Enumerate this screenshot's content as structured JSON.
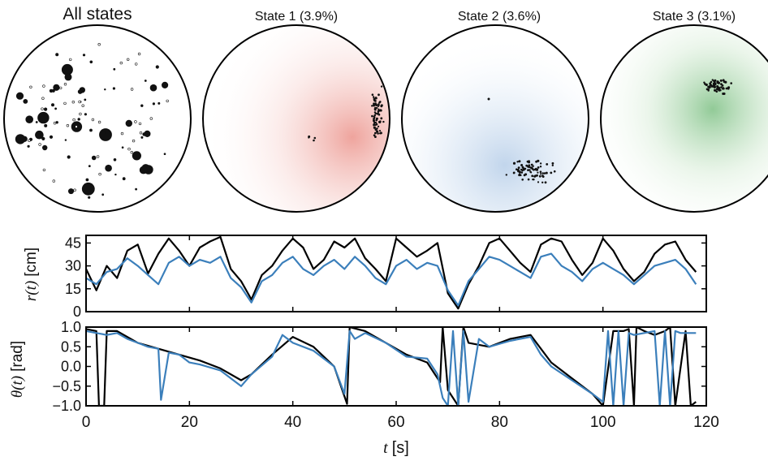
{
  "panels": [
    {
      "title": "All states",
      "color": "#000000"
    },
    {
      "title": "State 1 (3.9%)",
      "color": "#d9473c"
    },
    {
      "title": "State 2 (3.6%)",
      "color": "#3f7fbf"
    },
    {
      "title": "State 3 (3.1%)",
      "color": "#2e8b3a"
    }
  ],
  "chart_data": [
    {
      "type": "scatter",
      "title": "All states",
      "note": "points inside circular arena; filled dots sized by occupancy"
    },
    {
      "type": "scatter",
      "title": "State 1 (3.9%)",
      "cluster_location": "right edge of arena"
    },
    {
      "type": "scatter",
      "title": "State 2 (3.6%)",
      "cluster_location": "bottom-right of arena"
    },
    {
      "type": "scatter",
      "title": "State 3 (3.1%)",
      "cluster_location": "upper center-right of arena"
    },
    {
      "type": "line",
      "ylabel_math": "r(t)",
      "ylabel_unit": "[cm]",
      "xlim": [
        0,
        120
      ],
      "ylim": [
        0,
        50
      ],
      "yticks": [
        "0",
        "15",
        "30",
        "45"
      ],
      "x": [
        0,
        2,
        4,
        6,
        8,
        10,
        12,
        14,
        16,
        18,
        20,
        22,
        24,
        26,
        28,
        30,
        32,
        34,
        36,
        38,
        40,
        42,
        44,
        46,
        48,
        50,
        52,
        54,
        56,
        58,
        60,
        62,
        64,
        66,
        68,
        70,
        72,
        74,
        76,
        78,
        80,
        82,
        84,
        86,
        88,
        90,
        92,
        94,
        96,
        98,
        100,
        102,
        104,
        106,
        108,
        110,
        112,
        114,
        116,
        118
      ],
      "series": [
        {
          "color": "#000000",
          "values": [
            28,
            14,
            30,
            22,
            40,
            44,
            25,
            38,
            48,
            40,
            30,
            42,
            46,
            49,
            28,
            20,
            8,
            24,
            30,
            40,
            48,
            42,
            28,
            34,
            46,
            42,
            48,
            35,
            28,
            20,
            48,
            42,
            36,
            40,
            45,
            12,
            2,
            18,
            30,
            45,
            48,
            40,
            32,
            26,
            44,
            48,
            46,
            34,
            24,
            32,
            48,
            40,
            28,
            20,
            26,
            38,
            44,
            46,
            34,
            26
          ]
        },
        {
          "color": "#3b7fbb",
          "values": [
            22,
            18,
            26,
            28,
            35,
            30,
            24,
            18,
            32,
            36,
            30,
            34,
            32,
            36,
            22,
            16,
            6,
            20,
            24,
            32,
            36,
            28,
            24,
            30,
            34,
            28,
            36,
            30,
            22,
            18,
            30,
            34,
            28,
            32,
            30,
            14,
            4,
            20,
            28,
            36,
            34,
            30,
            26,
            22,
            36,
            38,
            30,
            26,
            20,
            28,
            32,
            28,
            24,
            18,
            24,
            30,
            32,
            34,
            28,
            18
          ]
        }
      ]
    },
    {
      "type": "line",
      "ylabel_math": "θ(t)",
      "ylabel_unit": "[rad]",
      "xlabel_math": "t",
      "xlabel_unit": "[s]",
      "xlim": [
        0,
        120
      ],
      "ylim": [
        -1.0,
        1.0
      ],
      "yticks": [
        "−1.0",
        "−0.5",
        "0.0",
        "0.5",
        "1.0"
      ],
      "xticks": [
        "0",
        "20",
        "40",
        "60",
        "80",
        "100",
        "120"
      ],
      "series": [
        {
          "color": "#000000",
          "x": [
            0,
            2,
            2.5,
            3.5,
            4,
            6,
            10,
            14,
            18,
            22,
            26,
            30,
            32,
            36,
            40,
            44,
            48,
            50.5,
            51,
            54,
            58,
            62,
            66,
            68.5,
            69,
            70,
            72,
            73,
            74,
            78,
            82,
            86,
            90,
            94,
            98,
            100,
            102,
            104,
            105,
            106,
            106.5,
            108,
            110,
            112,
            113,
            114,
            116,
            117,
            118
          ],
          "values": [
            0.95,
            0.9,
            -1,
            -1,
            0.9,
            0.9,
            0.6,
            0.45,
            0.3,
            0.15,
            -0.05,
            -0.35,
            -0.2,
            0.3,
            0.75,
            0.5,
            0.0,
            -0.95,
            1.0,
            0.9,
            0.6,
            0.3,
            0.1,
            -0.4,
            1.0,
            -0.6,
            -1,
            1,
            0.6,
            0.5,
            0.7,
            0.8,
            0.1,
            -0.3,
            -0.7,
            -1.0,
            0.9,
            0.9,
            0.95,
            -1,
            1,
            0.9,
            0.8,
            0.9,
            1,
            -1,
            0.9,
            -1,
            -0.9
          ]
        },
        {
          "color": "#3b7fbb",
          "x": [
            0,
            2,
            4,
            6,
            8,
            10,
            12,
            14,
            14.5,
            16,
            18,
            20,
            22,
            26,
            28,
            30,
            32,
            36,
            38,
            40,
            44,
            48,
            50,
            51,
            52,
            54,
            58,
            62,
            66,
            68,
            69,
            70,
            71,
            72,
            73,
            74,
            76,
            78,
            82,
            86,
            88,
            90,
            94,
            98,
            100,
            101,
            102,
            103,
            104,
            105,
            106,
            108,
            110,
            111,
            112,
            113,
            114,
            115,
            116,
            118
          ],
          "values": [
            0.9,
            0.85,
            0.8,
            0.85,
            0.7,
            0.6,
            0.5,
            0.45,
            -0.85,
            0.35,
            0.3,
            0.1,
            0.05,
            -0.1,
            -0.3,
            -0.5,
            -0.2,
            0.25,
            0.8,
            0.6,
            0.4,
            0.0,
            -0.7,
            0.9,
            0.7,
            0.85,
            0.6,
            0.25,
            0.2,
            -0.2,
            -0.8,
            -1,
            0.9,
            -1,
            0.9,
            -0.9,
            0.7,
            0.5,
            0.65,
            0.75,
            0.3,
            0.0,
            -0.35,
            -0.7,
            -0.9,
            0.9,
            -1,
            0.9,
            -1,
            0.85,
            0.8,
            0.85,
            0.9,
            -1,
            0.9,
            -1,
            0.9,
            0.85,
            0.85,
            0.85
          ]
        }
      ]
    }
  ]
}
